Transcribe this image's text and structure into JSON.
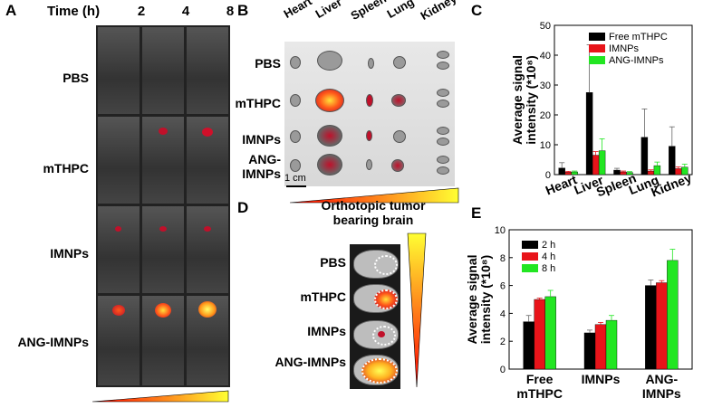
{
  "panelA": {
    "letter": "A",
    "time_header": "Time (h)",
    "times": [
      "2",
      "4",
      "8"
    ],
    "rows": [
      "PBS",
      "mTHPC",
      "IMNPs",
      "ANG-IMNPs"
    ]
  },
  "panelB": {
    "letter": "B",
    "organs": [
      "Heart",
      "Liver",
      "Spleen",
      "Lung",
      "Kidney"
    ],
    "rows": [
      "PBS",
      "mTHPC",
      "IMNPs",
      "ANG-\nIMNPs"
    ],
    "scale_label": "1 cm"
  },
  "panelD": {
    "letter": "D",
    "title_line1": "Orthotopic tumor",
    "title_line2": "bearing brain",
    "rows": [
      "PBS",
      "mTHPC",
      "IMNPs",
      "ANG-IMNPs"
    ]
  },
  "colors": {
    "black_series": "#000000",
    "red_series": "#e8141a",
    "green_series": "#22e622",
    "heat_low": "#ff0000",
    "heat_high": "#ffff33"
  },
  "chart_data": [
    {
      "panel": "C",
      "type": "bar",
      "ylabel_line1": "Average signal",
      "ylabel_line2": "intensity (*10⁸)",
      "ylim": [
        0,
        50
      ],
      "yticks": [
        0,
        10,
        20,
        30,
        40,
        50
      ],
      "categories": [
        "Heart",
        "Liver",
        "Spleen",
        "Lung",
        "Kidney"
      ],
      "legend_position": "top-right",
      "series": [
        {
          "name": "Free mTHPC",
          "values": [
            2.2,
            27.5,
            1.5,
            12.5,
            9.5
          ],
          "errors": [
            1.8,
            16,
            0.6,
            9.5,
            6.5
          ]
        },
        {
          "name": "IMNPs",
          "values": [
            0.8,
            6.5,
            0.9,
            1.2,
            2.0
          ],
          "errors": [
            0.3,
            1.2,
            0.3,
            0.4,
            0.6
          ]
        },
        {
          "name": "ANG-IMNPs",
          "values": [
            0.9,
            8.0,
            0.7,
            3.0,
            2.5
          ],
          "errors": [
            0.3,
            4.0,
            0.3,
            1.2,
            1.0
          ]
        }
      ]
    },
    {
      "panel": "E",
      "type": "bar",
      "ylabel_line1": "Average signal",
      "ylabel_line2": "intensity (*10⁸)",
      "ylim": [
        0,
        10
      ],
      "yticks": [
        0,
        2,
        4,
        6,
        8,
        10
      ],
      "categories": [
        "Free\nmTHPC",
        "IMNPs",
        "ANG-\nIMNPs"
      ],
      "legend_position": "top-left",
      "series": [
        {
          "name": "2 h",
          "values": [
            3.4,
            2.6,
            6.0
          ],
          "errors": [
            0.45,
            0.2,
            0.4
          ]
        },
        {
          "name": "4 h",
          "values": [
            5.0,
            3.2,
            6.2
          ],
          "errors": [
            0.1,
            0.15,
            0.15
          ]
        },
        {
          "name": "8 h",
          "values": [
            5.2,
            3.5,
            7.8
          ],
          "errors": [
            0.45,
            0.35,
            0.8
          ]
        }
      ]
    }
  ]
}
